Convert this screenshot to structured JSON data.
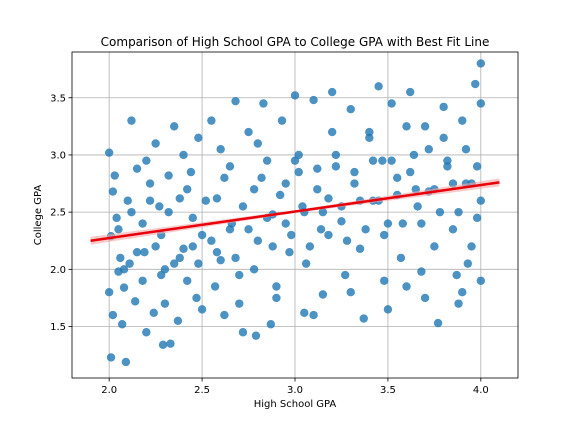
{
  "chart_data": {
    "type": "scatter",
    "title": "Comparison of High School GPA to College GPA with Best Fit Line",
    "xlabel": "High School GPA",
    "ylabel": "College GPA",
    "xlim": [
      1.8,
      4.2
    ],
    "ylim": [
      1.05,
      3.9
    ],
    "xticks": [
      "2.0",
      "2.5",
      "3.0",
      "3.5",
      "4.0"
    ],
    "yticks": [
      "1.5",
      "2.0",
      "2.5",
      "3.0",
      "3.5"
    ],
    "grid": true,
    "colors": {
      "points": "#1f77b4",
      "fit_line": "#e8000b",
      "confidence_band": "#f4a6a6",
      "grid": "#b0b0b0",
      "axes": "#000000"
    },
    "fit_line": {
      "x": [
        1.9,
        4.1
      ],
      "y": [
        2.25,
        2.76
      ],
      "ci_halfwidth_ends": 0.035,
      "ci_halfwidth_mid": 0.012
    },
    "points": [
      [
        2.0,
        3.02
      ],
      [
        2.02,
        2.68
      ],
      [
        2.03,
        2.82
      ],
      [
        2.04,
        2.45
      ],
      [
        2.01,
        2.29
      ],
      [
        2.06,
        2.1
      ],
      [
        2.08,
        1.84
      ],
      [
        2.0,
        1.8
      ],
      [
        2.02,
        1.6
      ],
      [
        2.01,
        1.23
      ],
      [
        2.09,
        1.19
      ],
      [
        2.07,
        1.52
      ],
      [
        2.05,
        1.98
      ],
      [
        2.1,
        2.6
      ],
      [
        2.12,
        3.3
      ],
      [
        2.15,
        2.88
      ],
      [
        2.18,
        2.4
      ],
      [
        2.11,
        2.05
      ],
      [
        2.14,
        1.72
      ],
      [
        2.2,
        1.45
      ],
      [
        2.19,
        2.15
      ],
      [
        2.22,
        2.75
      ],
      [
        2.25,
        3.1
      ],
      [
        2.27,
        2.55
      ],
      [
        2.3,
        2.0
      ],
      [
        2.33,
        1.35
      ],
      [
        2.29,
        1.34
      ],
      [
        2.24,
        1.62
      ],
      [
        2.28,
        2.3
      ],
      [
        2.32,
        2.82
      ],
      [
        2.35,
        3.25
      ],
      [
        2.38,
        2.62
      ],
      [
        2.4,
        2.18
      ],
      [
        2.42,
        1.9
      ],
      [
        2.37,
        1.55
      ],
      [
        2.45,
        2.45
      ],
      [
        2.48,
        3.15
      ],
      [
        2.44,
        2.85
      ],
      [
        2.5,
        2.3
      ],
      [
        2.47,
        1.75
      ],
      [
        2.55,
        3.3
      ],
      [
        2.58,
        2.62
      ],
      [
        2.6,
        2.08
      ],
      [
        2.62,
        1.6
      ],
      [
        2.57,
        1.85
      ],
      [
        2.65,
        2.9
      ],
      [
        2.68,
        3.47
      ],
      [
        2.66,
        2.4
      ],
      [
        2.7,
        1.95
      ],
      [
        2.72,
        1.45
      ],
      [
        2.75,
        3.2
      ],
      [
        2.78,
        2.7
      ],
      [
        2.8,
        2.25
      ],
      [
        2.79,
        1.42
      ],
      [
        2.83,
        3.45
      ],
      [
        2.85,
        2.95
      ],
      [
        2.88,
        2.48
      ],
      [
        2.9,
        1.85
      ],
      [
        2.87,
        1.52
      ],
      [
        2.93,
        3.3
      ],
      [
        2.95,
        2.75
      ],
      [
        2.97,
        2.15
      ],
      [
        3.0,
        3.52
      ],
      [
        3.02,
        3.0
      ],
      [
        3.04,
        2.55
      ],
      [
        3.06,
        2.05
      ],
      [
        3.05,
        1.62
      ],
      [
        3.1,
        3.48
      ],
      [
        3.12,
        2.88
      ],
      [
        3.14,
        2.35
      ],
      [
        3.15,
        1.78
      ],
      [
        3.18,
        2.62
      ],
      [
        3.2,
        3.55
      ],
      [
        3.22,
        3.0
      ],
      [
        3.25,
        2.42
      ],
      [
        3.27,
        1.95
      ],
      [
        3.3,
        3.4
      ],
      [
        3.32,
        2.75
      ],
      [
        3.35,
        2.18
      ],
      [
        3.37,
        1.57
      ],
      [
        3.4,
        3.15
      ],
      [
        3.42,
        2.6
      ],
      [
        3.45,
        3.6
      ],
      [
        3.47,
        2.95
      ],
      [
        3.48,
        1.9
      ],
      [
        3.5,
        2.4
      ],
      [
        3.52,
        3.45
      ],
      [
        3.55,
        2.8
      ],
      [
        3.57,
        2.1
      ],
      [
        3.6,
        1.85
      ],
      [
        3.62,
        3.55
      ],
      [
        3.64,
        3.0
      ],
      [
        3.66,
        2.55
      ],
      [
        3.68,
        1.98
      ],
      [
        3.7,
        3.25
      ],
      [
        3.72,
        2.68
      ],
      [
        3.75,
        2.2
      ],
      [
        3.77,
        1.53
      ],
      [
        3.8,
        3.42
      ],
      [
        3.82,
        2.9
      ],
      [
        3.85,
        2.35
      ],
      [
        3.87,
        1.95
      ],
      [
        3.9,
        3.3
      ],
      [
        3.92,
        2.75
      ],
      [
        3.95,
        2.2
      ],
      [
        3.97,
        3.62
      ],
      [
        3.98,
        2.9
      ],
      [
        4.0,
        3.8
      ],
      [
        4.0,
        3.45
      ],
      [
        4.0,
        2.6
      ],
      [
        4.0,
        1.9
      ],
      [
        3.93,
        2.05
      ],
      [
        3.88,
        1.7
      ],
      [
        3.1,
        1.6
      ],
      [
        2.15,
        2.15
      ],
      [
        2.05,
        2.35
      ],
      [
        2.25,
        2.2
      ],
      [
        2.35,
        2.05
      ],
      [
        2.45,
        2.2
      ],
      [
        2.55,
        2.25
      ],
      [
        2.65,
        2.35
      ],
      [
        2.75,
        2.35
      ],
      [
        2.85,
        2.45
      ],
      [
        2.95,
        2.4
      ],
      [
        3.05,
        2.5
      ],
      [
        3.15,
        2.5
      ],
      [
        3.25,
        2.55
      ],
      [
        3.35,
        2.6
      ],
      [
        3.45,
        2.6
      ],
      [
        3.55,
        2.65
      ],
      [
        3.65,
        2.7
      ],
      [
        3.75,
        2.7
      ],
      [
        3.85,
        2.75
      ],
      [
        3.95,
        2.75
      ],
      [
        2.12,
        2.5
      ],
      [
        2.22,
        2.6
      ],
      [
        2.32,
        2.5
      ],
      [
        2.42,
        2.7
      ],
      [
        2.52,
        2.6
      ],
      [
        2.62,
        2.8
      ],
      [
        2.72,
        2.55
      ],
      [
        2.82,
        2.8
      ],
      [
        2.92,
        2.65
      ],
      [
        3.02,
        2.85
      ],
      [
        3.12,
        2.7
      ],
      [
        3.22,
        2.9
      ],
      [
        3.32,
        2.85
      ],
      [
        3.42,
        2.95
      ],
      [
        3.52,
        2.95
      ],
      [
        3.62,
        2.85
      ],
      [
        3.72,
        3.05
      ],
      [
        3.82,
        2.95
      ],
      [
        3.92,
        3.05
      ],
      [
        2.08,
        2.0
      ],
      [
        2.18,
        1.9
      ],
      [
        2.28,
        1.95
      ],
      [
        2.38,
        2.1
      ],
      [
        2.48,
        2.05
      ],
      [
        2.58,
        2.15
      ],
      [
        2.68,
        2.1
      ],
      [
        2.78,
        2.0
      ],
      [
        2.88,
        2.2
      ],
      [
        2.98,
        2.3
      ],
      [
        3.08,
        2.2
      ],
      [
        3.18,
        2.3
      ],
      [
        3.28,
        2.25
      ],
      [
        3.38,
        2.35
      ],
      [
        3.48,
        2.3
      ],
      [
        3.58,
        2.4
      ],
      [
        3.68,
        2.4
      ],
      [
        3.78,
        2.5
      ],
      [
        3.88,
        2.5
      ],
      [
        3.98,
        2.45
      ],
      [
        2.2,
        2.95
      ],
      [
        2.4,
        3.0
      ],
      [
        2.6,
        3.05
      ],
      [
        2.8,
        3.1
      ],
      [
        3.0,
        2.95
      ],
      [
        3.2,
        3.2
      ],
      [
        3.4,
        3.2
      ],
      [
        3.6,
        3.25
      ],
      [
        3.8,
        3.15
      ],
      [
        2.3,
        1.7
      ],
      [
        2.5,
        1.65
      ],
      [
        2.7,
        1.7
      ],
      [
        2.9,
        1.75
      ],
      [
        3.3,
        1.8
      ],
      [
        3.5,
        1.65
      ],
      [
        3.7,
        1.75
      ],
      [
        3.9,
        1.8
      ]
    ]
  }
}
